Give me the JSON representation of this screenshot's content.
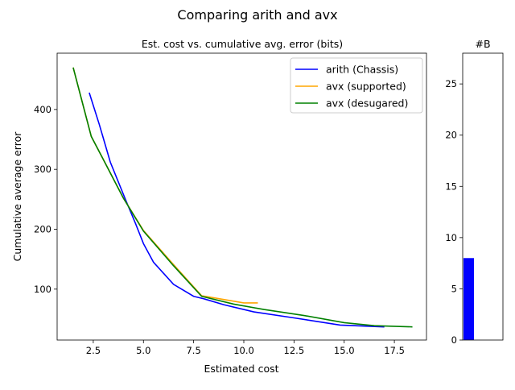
{
  "chart_data": [
    {
      "type": "line",
      "suptitle": "Comparing arith and avx",
      "title": "Est. cost vs. cumulative avg. error (bits)",
      "xlabel": "Estimated cost",
      "ylabel": "Cumulative average error",
      "xlim": [
        0.7,
        19.1
      ],
      "ylim": [
        15,
        494
      ],
      "xticks": [
        2.5,
        5.0,
        7.5,
        10.0,
        12.5,
        15.0,
        17.5
      ],
      "xtick_labels": [
        "2.5",
        "5.0",
        "7.5",
        "10.0",
        "12.5",
        "15.0",
        "17.5"
      ],
      "yticks": [
        100,
        200,
        300,
        400
      ],
      "ytick_labels": [
        "100",
        "200",
        "300",
        "400"
      ],
      "legend_placement": "top-right",
      "grid": false,
      "series": [
        {
          "name": "arith (Chassis)",
          "color": "#0000ff",
          "x": [
            2.3,
            2.8,
            3.35,
            4.1,
            4.6,
            5.0,
            5.5,
            6.5,
            7.5,
            8.0,
            9.0,
            10.5,
            12.5,
            14.8,
            17.0
          ],
          "y": [
            428,
            375,
            312,
            250,
            210,
            176,
            145,
            108,
            88,
            84,
            74,
            62,
            52,
            40,
            37
          ]
        },
        {
          "name": "avx (supported)",
          "color": "#ffa500",
          "x": [
            1.5,
            2.4,
            2.9,
            4.0,
            5.0,
            6.5,
            7.9,
            10.0,
            10.7
          ],
          "y": [
            470,
            355,
            323,
            252,
            198,
            141,
            89,
            77,
            77
          ]
        },
        {
          "name": "avx (desugared)",
          "color": "#008000",
          "x": [
            1.5,
            2.4,
            2.9,
            4.0,
            5.0,
            6.5,
            7.9,
            9.5,
            11.0,
            13.0,
            15.0,
            16.5,
            18.4
          ],
          "y": [
            470,
            355,
            323,
            252,
            197,
            139,
            88,
            75,
            66,
            56,
            44,
            39,
            37
          ]
        }
      ]
    },
    {
      "type": "bar",
      "title": "#B",
      "categories": [
        ""
      ],
      "values": [
        8
      ],
      "color": "#0000ff",
      "ylim": [
        0,
        28
      ],
      "yticks": [
        0,
        5,
        10,
        15,
        20,
        25
      ],
      "ytick_labels": [
        "0",
        "5",
        "10",
        "15",
        "20",
        "25"
      ]
    }
  ]
}
